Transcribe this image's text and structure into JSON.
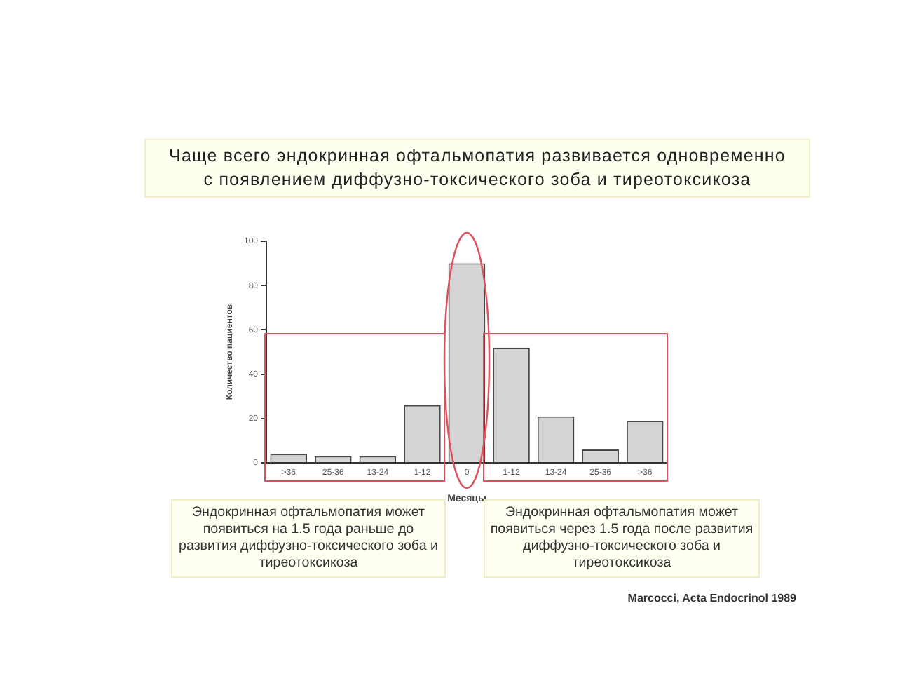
{
  "chart_data": {
    "type": "bar",
    "title": "Чаще всего эндокринная офтальмопатия развивается одновременно с появлением диффузно-токсического зоба и тиреотоксикоза",
    "xlabel": "Месяцы",
    "ylabel": "Количество пациентов",
    "categories": [
      ">36",
      "25-36",
      "13-24",
      "1-12",
      "0",
      "1-12",
      "13-24",
      "25-36",
      ">36"
    ],
    "values": [
      4,
      3,
      3,
      26,
      90,
      52,
      21,
      6,
      19
    ],
    "color": "#d4d4d4",
    "ylim": [
      0,
      100
    ],
    "yticks": [
      0,
      20,
      40,
      60,
      80,
      100
    ],
    "grid": false,
    "legend": false,
    "annotations": [
      "Эндокринная офтальмопатия может появиться на 1.5 года раньше до развития диффузно-токсического зоба и тиреотоксикоза",
      "Эндокринная офтальмопатия может появиться через 1.5 года после развития диффузно-токсического зоба и тиреотоксикоза",
      "Marcocci, Acta Endocrinol 1989"
    ]
  }
}
